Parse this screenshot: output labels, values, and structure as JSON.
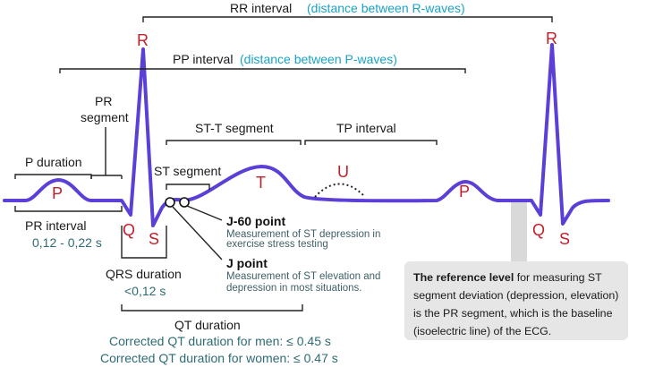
{
  "rr_interval": {
    "label": "RR  interval",
    "detail": "(distance between R-waves)"
  },
  "pp_interval": {
    "label": "PP interval",
    "detail": "(distance between P-waves)"
  },
  "pr_segment": [
    "PR",
    "segment"
  ],
  "p_duration": "P duration",
  "pr_interval": {
    "label": "PR interval",
    "value": "0,12 - 0,22 s"
  },
  "st_t_segment": "ST-T segment",
  "tp_interval": "TP interval",
  "st_segment": "ST segment",
  "waves": {
    "p": "P",
    "q": "Q",
    "r": "R",
    "s": "S",
    "t": "T",
    "u": "U"
  },
  "j60": {
    "title": "J-60 point",
    "desc": [
      "Measurement of ST depression in",
      "exercise stress testing"
    ]
  },
  "jpoint": {
    "title": "J point",
    "desc": [
      "Measurement of ST elevation and",
      "depression in most situations."
    ]
  },
  "qrs_duration": {
    "label": "QRS duration",
    "value": "<0,12 s"
  },
  "qt_duration": {
    "label": "QT duration",
    "men": "Corrected QT duration for men: ≤ 0.45 s",
    "women": "Corrected QT duration for women: ≤ 0.47 s"
  },
  "reference_note": {
    "bold": "The reference level",
    "rest": " for measuring ST segment deviation (depression, elevation) is the PR segment, which is the baseline (isoelectric line) of the ECG."
  },
  "colors": {
    "trace": "#5b3fd6",
    "wave_label": "#c0202b",
    "cyan": "#1aa3c4"
  }
}
